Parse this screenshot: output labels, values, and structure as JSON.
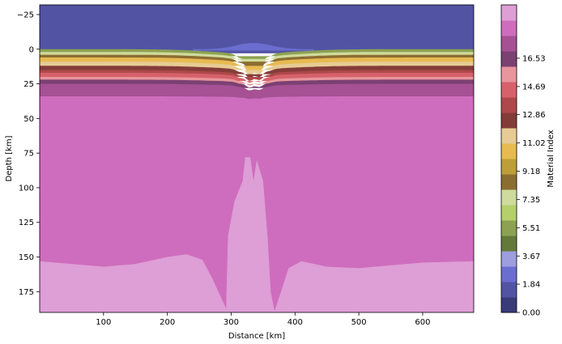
{
  "chart_data": {
    "type": "heatmap",
    "title": "",
    "xlabel": "Distance [km]",
    "ylabel": "Depth [km]",
    "xlim": [
      0,
      680
    ],
    "ylim": [
      190,
      -32
    ],
    "y_inverted": true,
    "xticks": [
      100,
      200,
      300,
      400,
      500,
      600
    ],
    "yticks": [
      -25,
      0,
      25,
      50,
      75,
      100,
      125,
      150,
      175
    ],
    "x_tick_labels": [
      "100",
      "200",
      "300",
      "400",
      "500",
      "600"
    ],
    "y_tick_labels": [
      "−25",
      "0",
      "25",
      "50",
      "75",
      "100",
      "125",
      "150",
      "175"
    ],
    "grid": false,
    "colorbar": {
      "label": "Material Index",
      "range": [
        0,
        20
      ],
      "tick_values": [
        0.0,
        1.84,
        3.67,
        5.51,
        7.35,
        9.18,
        11.02,
        12.86,
        14.69,
        16.53
      ],
      "tick_labels": [
        "0.00",
        "1.84",
        "3.67",
        "5.51",
        "7.35",
        "9.18",
        "11.02",
        "12.86",
        "14.69",
        "16.53"
      ],
      "colors": [
        "#393b79",
        "#5254a3",
        "#6b6ecf",
        "#9c9ede",
        "#637939",
        "#8ca252",
        "#b5cf6b",
        "#cedb9c",
        "#8c6d31",
        "#bd9e39",
        "#e7ba52",
        "#e7cb94",
        "#843c39",
        "#ad494a",
        "#d6616b",
        "#e7969c",
        "#7b4173",
        "#a55194",
        "#ce6dbd",
        "#de9ed6"
      ]
    },
    "layers": [
      {
        "top_depth": -32,
        "bottom_depth": 0,
        "material_index": 1,
        "color": "#5254a3"
      },
      {
        "top_depth": 0,
        "bottom_depth": 2,
        "material_index": 6,
        "color": "#8ca252"
      },
      {
        "top_depth": 2,
        "bottom_depth": 4,
        "material_index": 7,
        "color": "#cedb9c"
      },
      {
        "top_depth": 4,
        "bottom_depth": 6,
        "material_index": 8,
        "color": "#8c6d31"
      },
      {
        "top_depth": 6,
        "bottom_depth": 9,
        "material_index": 10,
        "color": "#e7ba52"
      },
      {
        "top_depth": 9,
        "bottom_depth": 12,
        "material_index": 11,
        "color": "#e7cb94"
      },
      {
        "top_depth": 12,
        "bottom_depth": 15,
        "material_index": 12,
        "color": "#843c39"
      },
      {
        "top_depth": 15,
        "bottom_depth": 17,
        "material_index": 13,
        "color": "#ad494a"
      },
      {
        "top_depth": 17,
        "bottom_depth": 20,
        "material_index": 14,
        "color": "#d6616b"
      },
      {
        "top_depth": 20,
        "bottom_depth": 22,
        "material_index": 15,
        "color": "#e7969c"
      },
      {
        "top_depth": 22,
        "bottom_depth": 25,
        "material_index": 16,
        "color": "#7b4173"
      },
      {
        "top_depth": 25,
        "bottom_depth": 34,
        "material_index": 17,
        "color": "#a55194"
      },
      {
        "top_depth": 34,
        "bottom_depth": 190,
        "material_index": 18,
        "color": "#ce6dbd"
      }
    ],
    "bottom_body": {
      "material_index": 19,
      "color": "#de9ed6",
      "boundary": [
        [
          0,
          153
        ],
        [
          50,
          155
        ],
        [
          100,
          157
        ],
        [
          150,
          155
        ],
        [
          200,
          150
        ],
        [
          230,
          148
        ],
        [
          255,
          152
        ],
        [
          270,
          165
        ],
        [
          285,
          180
        ],
        [
          292,
          187
        ],
        [
          295,
          135
        ],
        [
          305,
          110
        ],
        [
          318,
          95
        ],
        [
          322,
          78
        ],
        [
          330,
          78
        ],
        [
          335,
          95
        ],
        [
          340,
          80
        ],
        [
          350,
          95
        ],
        [
          357,
          135
        ],
        [
          362,
          175
        ],
        [
          368,
          189
        ],
        [
          378,
          175
        ],
        [
          390,
          158
        ],
        [
          410,
          153
        ],
        [
          450,
          157
        ],
        [
          500,
          158
        ],
        [
          550,
          156
        ],
        [
          600,
          154
        ],
        [
          680,
          153
        ]
      ]
    },
    "surface_marker_color": "#6b6ecf"
  }
}
